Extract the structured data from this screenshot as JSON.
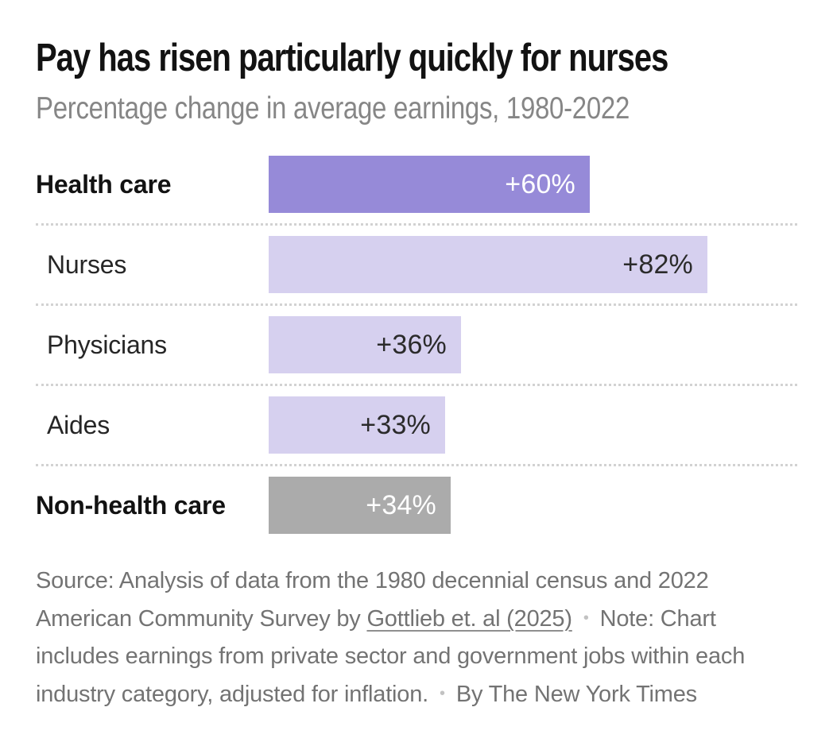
{
  "chart_data": {
    "type": "bar",
    "orientation": "horizontal",
    "title": "Pay has risen particularly quickly for nurses",
    "subtitle": "Percentage change in average earnings, 1980-2022",
    "unit": "percent change in average earnings, 1980-2022",
    "value_axis_range": [
      0,
      82
    ],
    "grid": "off",
    "legend": "none",
    "categories": [
      "Health care",
      "Nurses",
      "Physicians",
      "Aides",
      "Non-health care"
    ],
    "values": [
      60,
      82,
      36,
      33,
      34
    ],
    "value_labels": [
      "+60%",
      "+82%",
      "+36%",
      "+33%",
      "+34%"
    ],
    "emphasis": [
      true,
      false,
      false,
      false,
      true
    ],
    "bar_colors": [
      "#968ad8",
      "#d6d0ef",
      "#d6d0ef",
      "#d6d0ef",
      "#ababab"
    ],
    "value_label_colors": [
      "#ffffff",
      "#2b2b2b",
      "#2b2b2b",
      "#2b2b2b",
      "#ffffff"
    ]
  },
  "footer": {
    "source_prefix": "Source: Analysis of data from the 1980 decennial census and 2022 American Community Survey by ",
    "source_link": "Gottlieb et. al (2025)",
    "separator": "•",
    "note": "Note: Chart includes earnings from private sector and government jobs within each industry category, adjusted for inflation.",
    "byline": "By The New York Times"
  },
  "style": {
    "accent_purple": "#968ad8",
    "light_purple": "#d6d0ef",
    "neutral_gray_bar": "#ababab",
    "title_color": "#121212",
    "subtitle_color": "#868686",
    "footnote_color": "#737373",
    "divider_color": "#d2d2d2",
    "background": "#ffffff"
  }
}
